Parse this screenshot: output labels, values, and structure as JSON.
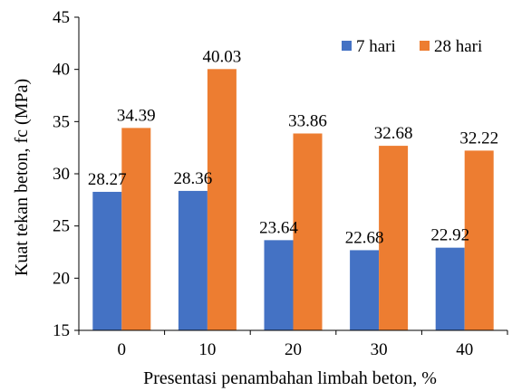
{
  "chart_data": {
    "type": "bar",
    "categories": [
      "0",
      "10",
      "20",
      "30",
      "40"
    ],
    "series": [
      {
        "name": "7 hari",
        "values": [
          28.27,
          28.36,
          23.64,
          22.68,
          22.92
        ],
        "color": "#4472C4"
      },
      {
        "name": "28 hari",
        "values": [
          34.39,
          40.03,
          33.86,
          32.68,
          32.22
        ],
        "color": "#ED7D31"
      }
    ],
    "data_labels": [
      [
        "28.27",
        "28.36",
        "23.64",
        "22.68",
        "22.92"
      ],
      [
        "34.39",
        "40.03",
        "33.86",
        "32.68",
        "32.22"
      ]
    ],
    "title": "",
    "xlabel": "Presentasi penambahan limbah beton, %",
    "ylabel": "Kuat tekan beton, fc (MPa)",
    "ylim": [
      15,
      45
    ],
    "yticks": [
      "15",
      "20",
      "25",
      "30",
      "35",
      "40",
      "45"
    ],
    "grid": false,
    "legend_position": "top-right"
  }
}
